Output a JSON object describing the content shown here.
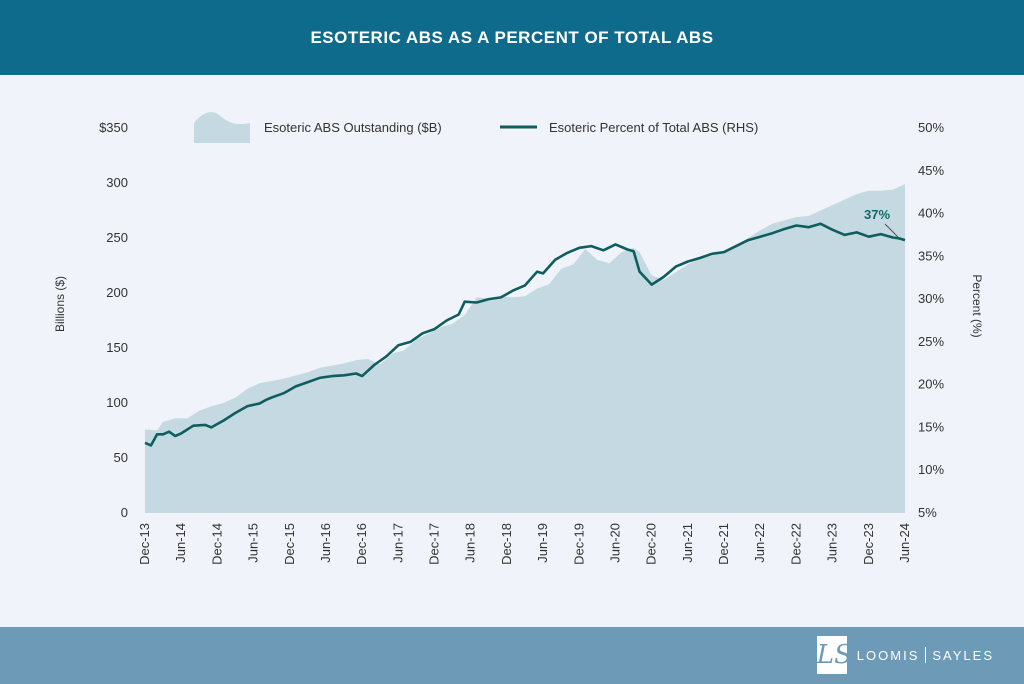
{
  "header": {
    "title": "ESOTERIC ABS AS A PERCENT OF TOTAL ABS"
  },
  "footer": {
    "brand_left": "LOOMIS",
    "brand_right": "SAYLES"
  },
  "colors": {
    "header_bg": "#0e6b8c",
    "footer_bg": "#6d9ab6",
    "area": "#c5d9e3",
    "line": "#0e5e60",
    "background": "#f0f3f9"
  },
  "chart_data": {
    "type": "area",
    "x_ticks": [
      "Dec-13",
      "Jun-14",
      "Dec-14",
      "Jun-15",
      "Dec-15",
      "Jun-16",
      "Dec-16",
      "Jun-17",
      "Dec-17",
      "Jun-18",
      "Dec-18",
      "Jun-19",
      "Dec-19",
      "Jun-20",
      "Dec-20",
      "Jun-21",
      "Dec-21",
      "Jun-22",
      "Dec-22",
      "Jun-23",
      "Dec-23",
      "Jun-24"
    ],
    "ylabel": "Billions ($)",
    "y2label": "Percent (%)",
    "y_ticks": [
      "0",
      "50",
      "100",
      "150",
      "200",
      "250",
      "300",
      "$350"
    ],
    "y2_ticks": [
      "5%",
      "10%",
      "15%",
      "20%",
      "25%",
      "30%",
      "35%",
      "40%",
      "45%",
      "50%"
    ],
    "ylim": [
      0,
      350
    ],
    "y2lim": [
      5,
      50
    ],
    "legend": {
      "area_label": "Esoteric ABS Outstanding ($B)",
      "line_label": "Esoteric Percent of Total ABS (RHS)"
    },
    "annotation": "37%",
    "series": [
      {
        "name": "Esoteric ABS Outstanding ($B)",
        "axis": "left",
        "points": [
          [
            "Dec-13",
            76
          ],
          [
            "Feb-14",
            75
          ],
          [
            "Mar-14",
            83
          ],
          [
            "May-14",
            86
          ],
          [
            "Jul-14",
            86
          ],
          [
            "Sep-14",
            93
          ],
          [
            "Nov-14",
            97
          ],
          [
            "Jan-15",
            100
          ],
          [
            "Mar-15",
            105
          ],
          [
            "May-15",
            113
          ],
          [
            "Jul-15",
            118
          ],
          [
            "Sep-15",
            120
          ],
          [
            "Nov-15",
            122
          ],
          [
            "Jan-16",
            125
          ],
          [
            "Mar-16",
            128
          ],
          [
            "May-16",
            132
          ],
          [
            "Jul-16",
            134
          ],
          [
            "Sep-16",
            136
          ],
          [
            "Nov-16",
            139
          ],
          [
            "Jan-17",
            140
          ],
          [
            "Mar-17",
            135
          ],
          [
            "May-17",
            145
          ],
          [
            "Jul-17",
            148
          ],
          [
            "Sep-17",
            158
          ],
          [
            "Nov-17",
            163
          ],
          [
            "Jan-18",
            169
          ],
          [
            "Mar-18",
            172
          ],
          [
            "May-18",
            180
          ],
          [
            "Jul-18",
            196
          ],
          [
            "Sep-18",
            195
          ],
          [
            "Nov-18",
            197
          ],
          [
            "Jan-19",
            196
          ],
          [
            "Mar-19",
            197
          ],
          [
            "May-19",
            204
          ],
          [
            "Jul-19",
            208
          ],
          [
            "Sep-19",
            222
          ],
          [
            "Nov-19",
            226
          ],
          [
            "Jan-20",
            240
          ],
          [
            "Mar-20",
            230
          ],
          [
            "May-20",
            227
          ],
          [
            "Jul-20",
            237
          ],
          [
            "Sep-20",
            241
          ],
          [
            "Oct-20",
            237
          ],
          [
            "Dec-20",
            216
          ],
          [
            "Feb-21",
            212
          ],
          [
            "Apr-21",
            219
          ],
          [
            "Jun-21",
            226
          ],
          [
            "Aug-21",
            231
          ],
          [
            "Oct-21",
            234
          ],
          [
            "Dec-21",
            237
          ],
          [
            "Feb-22",
            243
          ],
          [
            "Apr-22",
            250
          ],
          [
            "Jun-22",
            257
          ],
          [
            "Aug-22",
            263
          ],
          [
            "Oct-22",
            266
          ],
          [
            "Dec-22",
            269
          ],
          [
            "Feb-23",
            270
          ],
          [
            "Apr-23",
            275
          ],
          [
            "Jun-23",
            280
          ],
          [
            "Aug-23",
            285
          ],
          [
            "Oct-23",
            290
          ],
          [
            "Dec-23",
            293
          ],
          [
            "Feb-24",
            293
          ],
          [
            "Apr-24",
            294
          ],
          [
            "Jun-24",
            299
          ]
        ]
      },
      {
        "name": "Esoteric Percent of Total ABS (RHS)",
        "axis": "right",
        "points": [
          [
            "Dec-13",
            13.2
          ],
          [
            "Jan-14",
            12.9
          ],
          [
            "Feb-14",
            14.2
          ],
          [
            "Mar-14",
            14.2
          ],
          [
            "Apr-14",
            14.5
          ],
          [
            "May-14",
            14.0
          ],
          [
            "Jun-14",
            14.3
          ],
          [
            "Aug-14",
            15.2
          ],
          [
            "Oct-14",
            15.3
          ],
          [
            "Nov-14",
            15.0
          ],
          [
            "Jan-15",
            15.8
          ],
          [
            "Mar-15",
            16.7
          ],
          [
            "May-15",
            17.5
          ],
          [
            "Jul-15",
            17.8
          ],
          [
            "Aug-15",
            18.2
          ],
          [
            "Sep-15",
            18.5
          ],
          [
            "Nov-15",
            19.0
          ],
          [
            "Jan-16",
            19.8
          ],
          [
            "Mar-16",
            20.3
          ],
          [
            "May-16",
            20.8
          ],
          [
            "Jul-16",
            21.0
          ],
          [
            "Sep-16",
            21.1
          ],
          [
            "Nov-16",
            21.3
          ],
          [
            "Dec-16",
            21.0
          ],
          [
            "Feb-17",
            22.3
          ],
          [
            "Apr-17",
            23.3
          ],
          [
            "Jun-17",
            24.6
          ],
          [
            "Aug-17",
            25.0
          ],
          [
            "Oct-17",
            26.0
          ],
          [
            "Dec-17",
            26.5
          ],
          [
            "Feb-18",
            27.5
          ],
          [
            "Apr-18",
            28.2
          ],
          [
            "May-18",
            29.7
          ],
          [
            "Jul-18",
            29.6
          ],
          [
            "Sep-18",
            30.0
          ],
          [
            "Nov-18",
            30.2
          ],
          [
            "Jan-19",
            31.0
          ],
          [
            "Mar-19",
            31.6
          ],
          [
            "May-19",
            33.2
          ],
          [
            "Jun-19",
            33.0
          ],
          [
            "Aug-19",
            34.6
          ],
          [
            "Oct-19",
            35.4
          ],
          [
            "Dec-19",
            36.0
          ],
          [
            "Feb-20",
            36.2
          ],
          [
            "Apr-20",
            35.7
          ],
          [
            "Jun-20",
            36.4
          ],
          [
            "Aug-20",
            35.8
          ],
          [
            "Sep-20",
            35.6
          ],
          [
            "Oct-20",
            33.2
          ],
          [
            "Dec-20",
            31.7
          ],
          [
            "Feb-21",
            32.6
          ],
          [
            "Apr-21",
            33.8
          ],
          [
            "Jun-21",
            34.4
          ],
          [
            "Aug-21",
            34.8
          ],
          [
            "Oct-21",
            35.3
          ],
          [
            "Dec-21",
            35.5
          ],
          [
            "Feb-22",
            36.2
          ],
          [
            "Apr-22",
            36.9
          ],
          [
            "Jun-22",
            37.3
          ],
          [
            "Aug-22",
            37.7
          ],
          [
            "Oct-22",
            38.2
          ],
          [
            "Dec-22",
            38.6
          ],
          [
            "Feb-23",
            38.4
          ],
          [
            "Apr-23",
            38.8
          ],
          [
            "Jun-23",
            38.1
          ],
          [
            "Aug-23",
            37.5
          ],
          [
            "Oct-23",
            37.8
          ],
          [
            "Dec-23",
            37.3
          ],
          [
            "Feb-24",
            37.6
          ],
          [
            "Apr-24",
            37.2
          ],
          [
            "May-24",
            37.1
          ],
          [
            "Jun-24",
            36.9
          ]
        ]
      }
    ]
  }
}
